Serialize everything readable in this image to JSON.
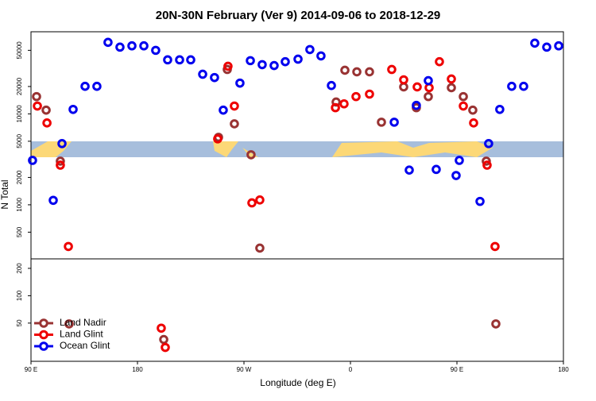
{
  "chart_data": {
    "type": "scatter",
    "title": "20N-30N February (Ver 9)   2014-09-06 to 2018-12-29",
    "x_label": "Longitude (deg E)",
    "y_label": "N Total",
    "log_y": true,
    "xlim": [
      90,
      540
    ],
    "xticks": [
      {
        "value": 90,
        "label": "90 E"
      },
      {
        "value": 180,
        "label": "180"
      },
      {
        "value": 270,
        "label": "90 W"
      },
      {
        "value": 360,
        "label": "0"
      },
      {
        "value": 450,
        "label": "90 E"
      },
      {
        "value": 540,
        "label": "180"
      }
    ],
    "ylim": [
      19,
      80000
    ],
    "yticks": [
      50,
      100,
      200,
      500,
      1000,
      2000,
      5000,
      10000,
      20000,
      50000
    ],
    "legend": "bottom-left",
    "series": [
      {
        "name": "Land Nadir",
        "color": "#993333",
        "x": [
          94.7,
          102.8,
          114.8,
          122.2,
          202.2,
          248.5,
          255.9,
          261.9,
          276.0,
          283.4,
          347.9,
          355.3,
          365.4,
          376.1,
          386.2,
          405.0,
          415.7,
          425.8,
          445.3,
          455.4,
          463.4,
          474.8,
          482.9
        ],
        "values": [
          15500,
          11000,
          3020,
          49,
          33,
          5530,
          30800,
          7770,
          3550,
          334,
          13500,
          30200,
          29000,
          29000,
          8100,
          19800,
          11700,
          15500,
          19400,
          15500,
          11000,
          3020,
          49
        ]
      },
      {
        "name": "Land Glint",
        "color": "#ee0000",
        "x": [
          95.4,
          103.5,
          114.8,
          121.6,
          200.1,
          203.5,
          247.8,
          256.5,
          261.9,
          276.7,
          283.4,
          347.3,
          354.6,
          364.7,
          376.1,
          394.9,
          405.0,
          416.4,
          426.5,
          435.2,
          445.3,
          455.4,
          464.1,
          475.5,
          482.2
        ],
        "values": [
          12200,
          7950,
          2730,
          348,
          44,
          27,
          5310,
          33400,
          12200,
          1050,
          1130,
          11700,
          12900,
          15500,
          16500,
          30800,
          23700,
          19800,
          19400,
          37500,
          24200,
          12200,
          7950,
          2730,
          348
        ]
      },
      {
        "name": "Ocean Glint",
        "color": "#0000ee",
        "x": [
          91.3,
          108.8,
          116.2,
          125.6,
          135.7,
          145.7,
          155.1,
          165.2,
          175.3,
          185.4,
          195.4,
          205.5,
          215.6,
          225.0,
          235.1,
          245.1,
          252.5,
          266.6,
          275.4,
          285.4,
          295.5,
          304.9,
          315.7,
          325.7,
          335.1,
          343.9,
          397.0,
          409.7,
          415.7,
          425.8,
          432.5,
          449.3,
          452.0,
          469.5,
          476.8,
          486.2,
          496.3,
          506.4,
          515.8,
          525.9,
          536.0
        ],
        "values": [
          3080,
          1120,
          4710,
          11200,
          20100,
          20100,
          61200,
          54200,
          56000,
          56000,
          50000,
          39300,
          39300,
          39300,
          27300,
          25100,
          11000,
          21800,
          38500,
          34800,
          34000,
          37500,
          40000,
          51000,
          43400,
          20500,
          8100,
          2410,
          12400,
          23200,
          2450,
          2100,
          3080,
          1090,
          4710,
          11200,
          20100,
          20100,
          60000,
          54200,
          56000
        ]
      }
    ]
  }
}
